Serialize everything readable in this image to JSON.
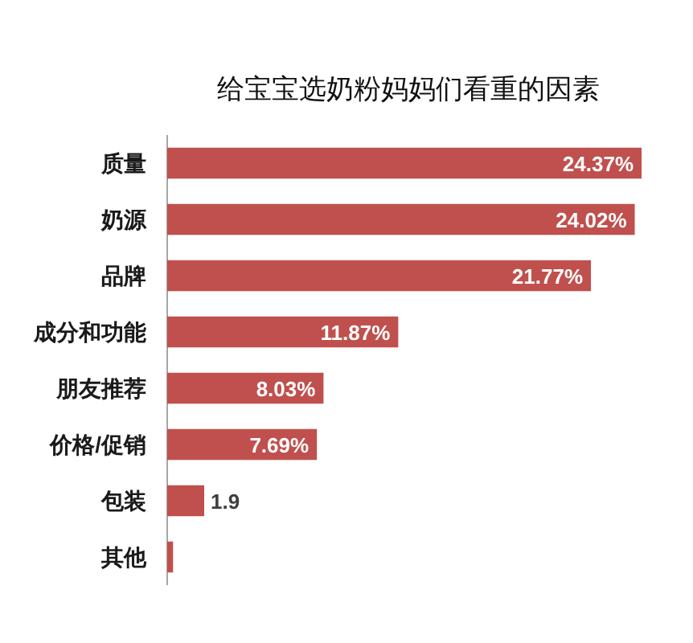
{
  "chart_data": {
    "type": "bar",
    "orientation": "horizontal",
    "title": "给宝宝选奶粉妈妈们看重的因素",
    "categories": [
      "质量",
      "奶源",
      "品牌",
      "成分和功能",
      "朋友推荐",
      "价格/促销",
      "包装",
      "其他"
    ],
    "values": [
      24.37,
      24.02,
      21.77,
      11.87,
      8.03,
      7.69,
      1.9,
      0.3
    ],
    "value_labels": [
      "24.37%",
      "24.02%",
      "21.77%",
      "11.87%",
      "8.03%",
      "7.69%",
      "1.9",
      null
    ],
    "color": "#c0504d"
  }
}
